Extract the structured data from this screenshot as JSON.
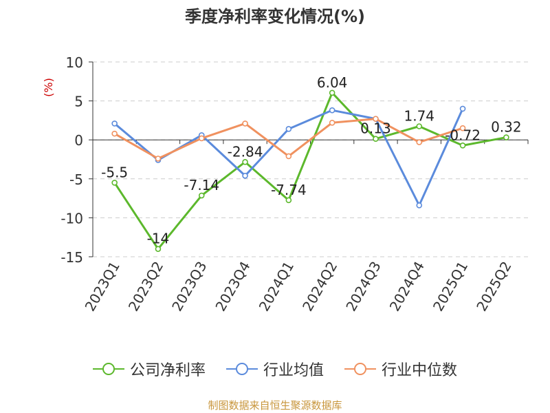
{
  "chart_data": {
    "type": "line",
    "title": "季度净利率变化情况(%)",
    "ylabel": "(%)",
    "xlabel": "",
    "ylim": [
      -15,
      10
    ],
    "yticks": [
      10,
      5,
      0,
      -5,
      -10,
      -15
    ],
    "grid": true,
    "legend_position": "bottom",
    "categories": [
      "2023Q1",
      "2023Q2",
      "2023Q3",
      "2023Q4",
      "2024Q1",
      "2024Q2",
      "2024Q3",
      "2024Q4",
      "2025Q1",
      "2025Q2"
    ],
    "series": [
      {
        "name": "公司净利率",
        "color": "#5cb82c",
        "values": [
          -5.5,
          -14,
          -7.14,
          -2.84,
          -7.74,
          6.04,
          0.13,
          1.74,
          -0.72,
          0.32
        ],
        "labels": [
          "-5.5",
          "-14",
          "-7.14",
          "-2.84",
          "-7.74",
          "6.04",
          "0.13",
          "1.74",
          "-0.72",
          "0.32"
        ]
      },
      {
        "name": "行业均值",
        "color": "#5b8bdc",
        "values": [
          2.1,
          -2.6,
          0.6,
          -4.6,
          1.4,
          3.8,
          2.7,
          -8.4,
          4.0,
          null
        ]
      },
      {
        "name": "行业中位数",
        "color": "#f0915f",
        "values": [
          0.8,
          -2.4,
          0.2,
          2.1,
          -2.1,
          2.2,
          2.7,
          -0.3,
          1.5,
          null
        ]
      }
    ]
  },
  "footer": {
    "source": "制图数据来自恒生聚源数据库",
    "source_color": "#c8963c"
  }
}
